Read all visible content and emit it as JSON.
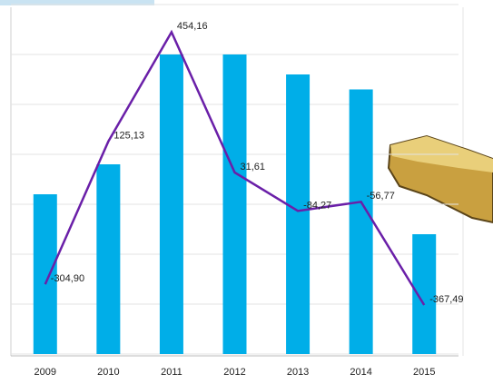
{
  "chart_data": {
    "type": "bar-line",
    "categories": [
      "2009",
      "2010",
      "2011",
      "2012",
      "2013",
      "2014",
      "2015"
    ],
    "ylim": [
      0,
      7
    ],
    "yticks": [
      0,
      1,
      2,
      3,
      4,
      5,
      6,
      7
    ],
    "grid": true,
    "y2lim": [
      -515,
      537
    ],
    "series": [
      {
        "type": "bar",
        "color": "#00aee8",
        "values": [
          3.2,
          3.8,
          6.0,
          6.0,
          5.6,
          5.3,
          2.4
        ]
      },
      {
        "type": "line",
        "axis": "y2",
        "color": "#6a1fa8",
        "values": [
          -304.9,
          125.13,
          454.16,
          31.61,
          -84.27,
          -56.77,
          -367.49
        ],
        "value_labels": [
          "-304,90",
          "125,13",
          "454,16",
          "31,61",
          "-84,27",
          "-56,77",
          "-367,49"
        ]
      }
    ]
  }
}
